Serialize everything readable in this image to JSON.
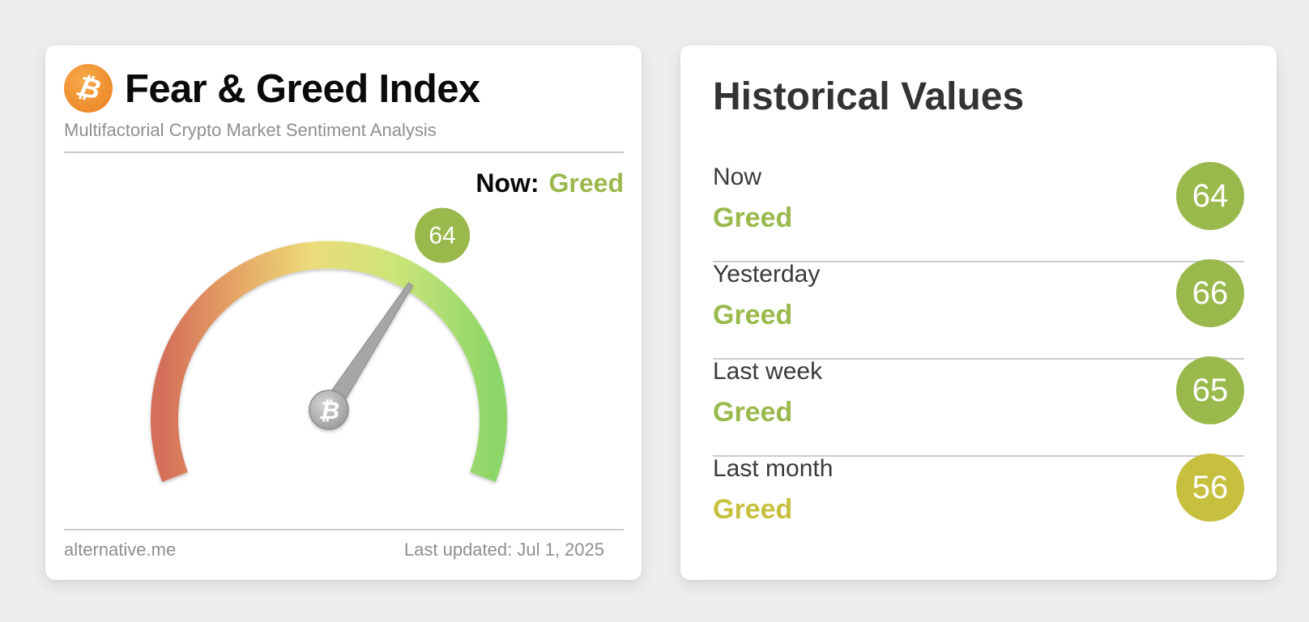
{
  "main": {
    "title": "Fear & Greed Index",
    "subtitle": "Multifactorial Crypto Market Sentiment Analysis",
    "logo_icon": "bitcoin-icon",
    "now_label": "Now:",
    "now_value": "Greed",
    "gauge": {
      "value": 64,
      "min": 0,
      "max": 100
    },
    "footer_left": "alternative.me",
    "footer_right": "Last updated: Jul 1, 2025"
  },
  "history": {
    "title": "Historical Values",
    "rows": [
      {
        "label": "Now",
        "classification": "Greed",
        "value": "64",
        "color": "#9ab94c"
      },
      {
        "label": "Yesterday",
        "classification": "Greed",
        "value": "66",
        "color": "#9ab94c"
      },
      {
        "label": "Last week",
        "classification": "Greed",
        "value": "65",
        "color": "#9ab94c"
      },
      {
        "label": "Last month",
        "classification": "Greed",
        "value": "56",
        "color": "#c7c03e"
      }
    ]
  },
  "colors": {
    "greed": "#9ab94c",
    "neutral_greed": "#c7c03e",
    "fear": "#d4705a",
    "extreme_greed": "#8dd668"
  }
}
